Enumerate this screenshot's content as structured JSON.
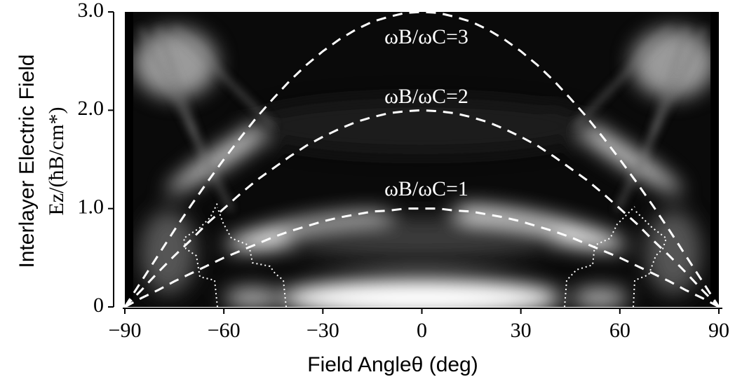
{
  "chart_data": {
    "type": "line",
    "xlabel": "Field Angleθ (deg)",
    "ylabel": [
      "Interlayer Electric Field",
      "Ez/(ħB/cm*)"
    ],
    "x": [
      -90,
      -85,
      -80,
      -75,
      -70,
      -65,
      -60,
      -55,
      -50,
      -45,
      -40,
      -35,
      -30,
      -25,
      -20,
      -15,
      -10,
      -5,
      0,
      5,
      10,
      15,
      20,
      25,
      30,
      35,
      40,
      45,
      50,
      55,
      60,
      65,
      70,
      75,
      80,
      85,
      90
    ],
    "series": [
      {
        "name": "ωB/ωC=1",
        "color": "#ffffff",
        "values": [
          0,
          0.09,
          0.17,
          0.26,
          0.34,
          0.42,
          0.5,
          0.57,
          0.64,
          0.71,
          0.77,
          0.82,
          0.87,
          0.91,
          0.94,
          0.97,
          0.98,
          1,
          1,
          1,
          0.98,
          0.97,
          0.94,
          0.91,
          0.87,
          0.82,
          0.77,
          0.71,
          0.64,
          0.57,
          0.5,
          0.42,
          0.34,
          0.26,
          0.17,
          0.09,
          0
        ]
      },
      {
        "name": "ωB/ωC=2",
        "color": "#ffffff",
        "values": [
          0,
          0.17,
          0.35,
          0.52,
          0.68,
          0.85,
          1,
          1.15,
          1.29,
          1.41,
          1.53,
          1.64,
          1.73,
          1.81,
          1.88,
          1.93,
          1.97,
          1.99,
          2,
          1.99,
          1.97,
          1.93,
          1.88,
          1.81,
          1.73,
          1.64,
          1.53,
          1.41,
          1.29,
          1.15,
          1,
          0.85,
          0.68,
          0.52,
          0.35,
          0.17,
          0
        ]
      },
      {
        "name": "ωB/ωC=3",
        "color": "#ffffff",
        "values": [
          0,
          0.26,
          0.52,
          0.78,
          1.03,
          1.27,
          1.5,
          1.72,
          1.93,
          2.12,
          2.3,
          2.46,
          2.6,
          2.72,
          2.82,
          2.9,
          2.95,
          2.99,
          3,
          2.99,
          2.95,
          2.9,
          2.82,
          2.72,
          2.6,
          2.46,
          2.3,
          2.12,
          1.93,
          1.72,
          1.5,
          1.27,
          1.03,
          0.78,
          0.52,
          0.26,
          0
        ]
      }
    ],
    "xlim": [
      -90,
      90
    ],
    "ylim": [
      0,
      3
    ],
    "xticks": [
      {
        "value": -90,
        "label": "−90"
      },
      {
        "value": -60,
        "label": "−60"
      },
      {
        "value": -30,
        "label": "−30"
      },
      0,
      30,
      60,
      90
    ],
    "yticks": [
      0,
      {
        "value": 1,
        "label": "1.0"
      },
      {
        "value": 2,
        "label": "2.0"
      },
      {
        "value": 3,
        "label": "3.0"
      }
    ]
  }
}
